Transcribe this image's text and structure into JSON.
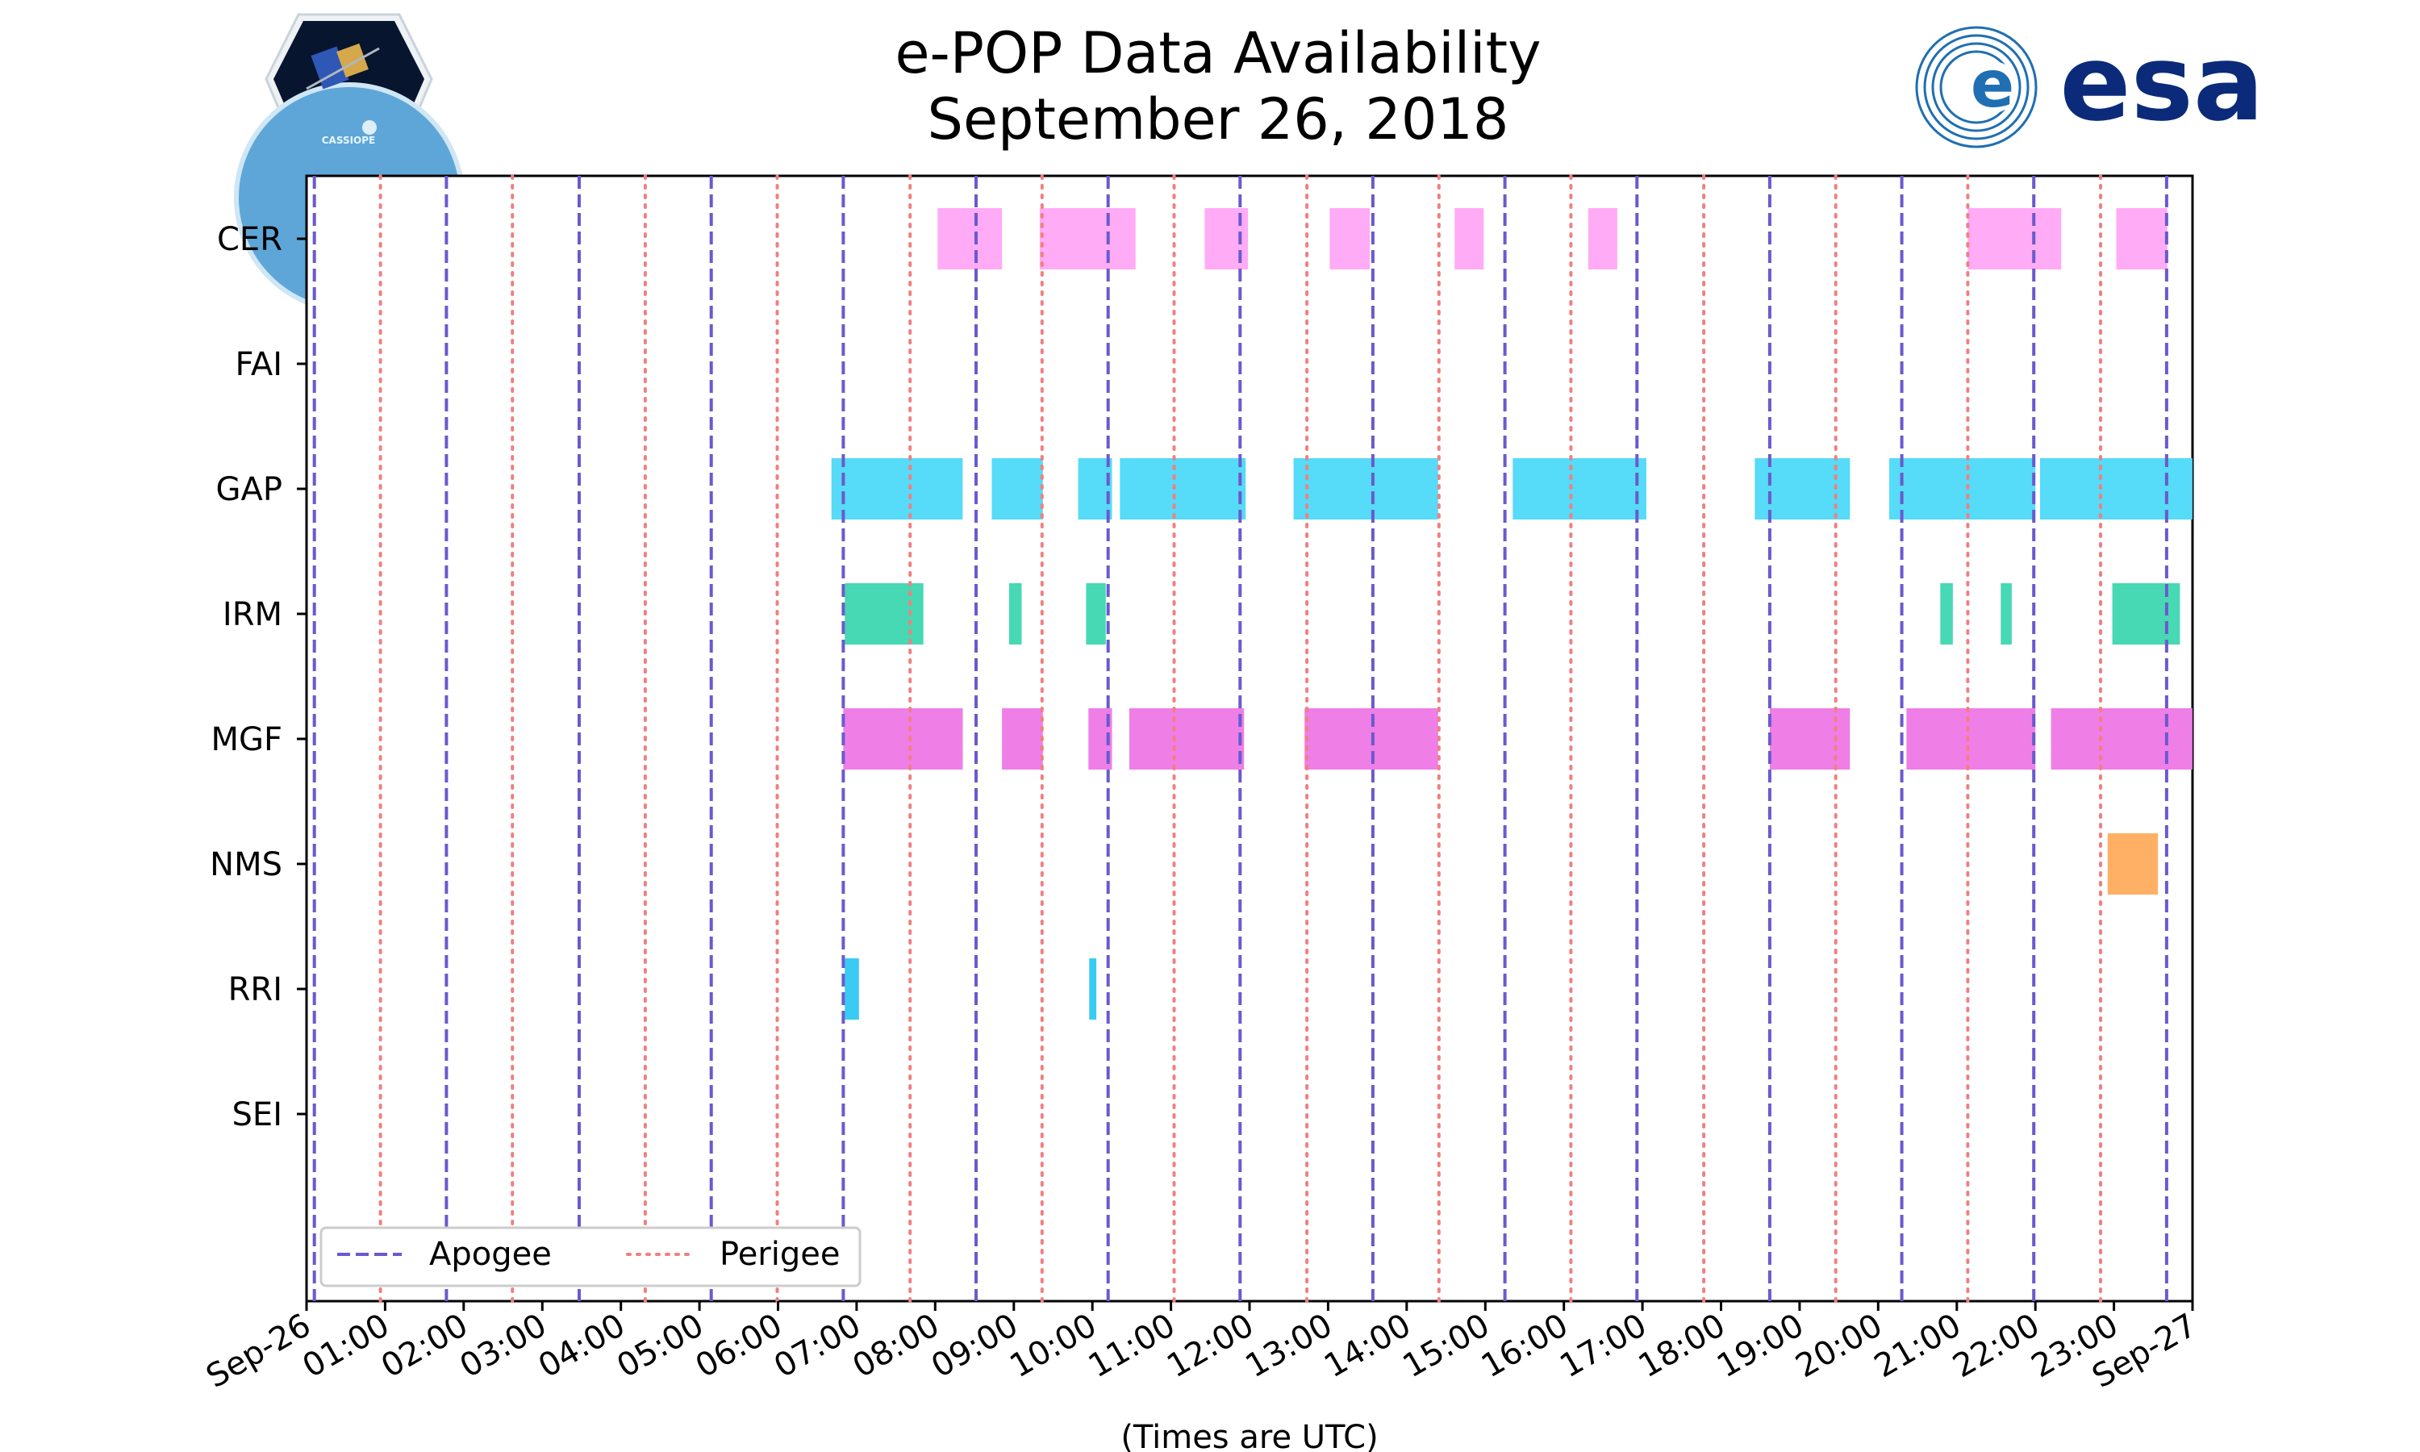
{
  "logos": {
    "left_mission": "CASSIOPE",
    "right_agency": "esa"
  },
  "chart_data": {
    "type": "gantt",
    "title_line1": "e-POP Data Availability",
    "title_line2": "September 26, 2018",
    "xlabel": "(Times are UTC)",
    "x_unit": "hours since 2018-09-26 00:00 UTC",
    "xlim": [
      0,
      24
    ],
    "x_tick_labels": [
      "Sep-26",
      "01:00",
      "02:00",
      "03:00",
      "04:00",
      "05:00",
      "06:00",
      "07:00",
      "08:00",
      "09:00",
      "10:00",
      "11:00",
      "12:00",
      "13:00",
      "14:00",
      "15:00",
      "16:00",
      "17:00",
      "18:00",
      "19:00",
      "20:00",
      "21:00",
      "22:00",
      "23:00",
      "Sep-27"
    ],
    "instruments": [
      "CER",
      "FAI",
      "GAP",
      "IRM",
      "MGF",
      "NMS",
      "RRI",
      "SEI"
    ],
    "legend": {
      "placement": "lower-left",
      "entries": [
        {
          "label": "Apogee",
          "style": "dashed",
          "color": "#6a5acd"
        },
        {
          "label": "Perigee",
          "style": "dotted",
          "color": "#f08080"
        }
      ]
    },
    "apogee_hours": [
      0.1,
      1.78,
      3.47,
      5.15,
      6.83,
      8.52,
      10.2,
      11.88,
      13.57,
      15.25,
      16.93,
      18.62,
      20.3,
      21.98,
      23.67
    ],
    "perigee_hours": [
      0.94,
      2.62,
      4.31,
      5.99,
      7.68,
      9.36,
      11.04,
      12.73,
      14.41,
      16.09,
      17.78,
      19.46,
      21.14,
      22.83
    ],
    "series": [
      {
        "name": "CER",
        "color": "#ffa6f5",
        "intervals": [
          [
            8.03,
            8.85
          ],
          [
            9.33,
            10.55
          ],
          [
            11.43,
            11.98
          ],
          [
            13.02,
            13.53
          ],
          [
            14.61,
            14.98
          ],
          [
            16.31,
            16.68
          ],
          [
            21.14,
            22.33
          ],
          [
            23.03,
            23.68
          ]
        ]
      },
      {
        "name": "FAI",
        "color": "#8fbc8f",
        "intervals": []
      },
      {
        "name": "GAP",
        "color": "#4dd9f8",
        "intervals": [
          [
            6.68,
            8.35
          ],
          [
            8.72,
            9.37
          ],
          [
            9.82,
            10.25
          ],
          [
            10.35,
            11.95
          ],
          [
            12.56,
            14.4
          ],
          [
            15.35,
            17.05
          ],
          [
            18.43,
            19.64
          ],
          [
            20.14,
            22.0
          ],
          [
            22.06,
            24.0
          ]
        ]
      },
      {
        "name": "IRM",
        "color": "#3dd6b0",
        "intervals": [
          [
            6.85,
            7.85
          ],
          [
            8.94,
            9.1
          ],
          [
            9.92,
            10.17
          ],
          [
            20.79,
            20.95
          ],
          [
            21.56,
            21.7
          ],
          [
            22.98,
            23.84
          ]
        ]
      },
      {
        "name": "MGF",
        "color": "#ee77e6",
        "intervals": [
          [
            6.83,
            8.35
          ],
          [
            8.85,
            9.37
          ],
          [
            9.95,
            10.25
          ],
          [
            10.47,
            11.93
          ],
          [
            12.7,
            14.4
          ],
          [
            18.62,
            19.64
          ],
          [
            20.36,
            22.0
          ],
          [
            22.2,
            24.0
          ]
        ]
      },
      {
        "name": "NMS",
        "color": "#ffac5c",
        "intervals": [
          [
            22.92,
            23.56
          ]
        ]
      },
      {
        "name": "RRI",
        "color": "#2ec8f2",
        "intervals": [
          [
            6.85,
            7.03
          ],
          [
            9.96,
            10.05
          ]
        ]
      },
      {
        "name": "SEI",
        "color": "#999999",
        "intervals": []
      }
    ]
  }
}
